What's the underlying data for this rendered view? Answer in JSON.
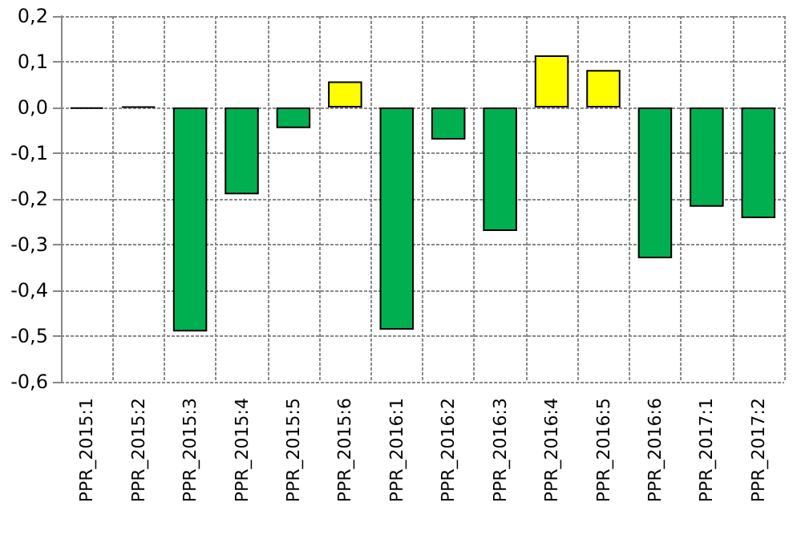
{
  "chart_data": {
    "type": "bar",
    "categories": [
      "PPR_2015:1",
      "PPR_2015:2",
      "PPR_2015:3",
      "PPR_2015:4",
      "PPR_2015:5",
      "PPR_2015:6",
      "PPR_2016:1",
      "PPR_2016:2",
      "PPR_2016:3",
      "PPR_2016:4",
      "PPR_2016:5",
      "PPR_2016:6",
      "PPR_2017:1",
      "PPR_2017:2"
    ],
    "values": [
      -0.003,
      0.002,
      -0.49,
      -0.19,
      -0.045,
      0.057,
      -0.486,
      -0.07,
      -0.27,
      0.114,
      0.082,
      -0.33,
      -0.217,
      -0.242
    ],
    "colors": [
      "#000000",
      "#000000",
      "#00b050",
      "#00b050",
      "#00b050",
      "#ffff00",
      "#00b050",
      "#00b050",
      "#00b050",
      "#ffff00",
      "#ffff00",
      "#00b050",
      "#00b050",
      "#00b050"
    ],
    "ylim": [
      -0.6,
      0.2
    ],
    "yticks": [
      {
        "value": -0.6,
        "label": "-0,6"
      },
      {
        "value": -0.5,
        "label": "-0,5"
      },
      {
        "value": -0.4,
        "label": "-0,4"
      },
      {
        "value": -0.3,
        "label": "-0,3"
      },
      {
        "value": -0.2,
        "label": "-0,2"
      },
      {
        "value": -0.1,
        "label": "-0,1"
      },
      {
        "value": 0,
        "label": "0,0"
      },
      {
        "value": 0.1,
        "label": "0,1"
      },
      {
        "value": 0.2,
        "label": "0,2"
      }
    ],
    "grid": true
  }
}
